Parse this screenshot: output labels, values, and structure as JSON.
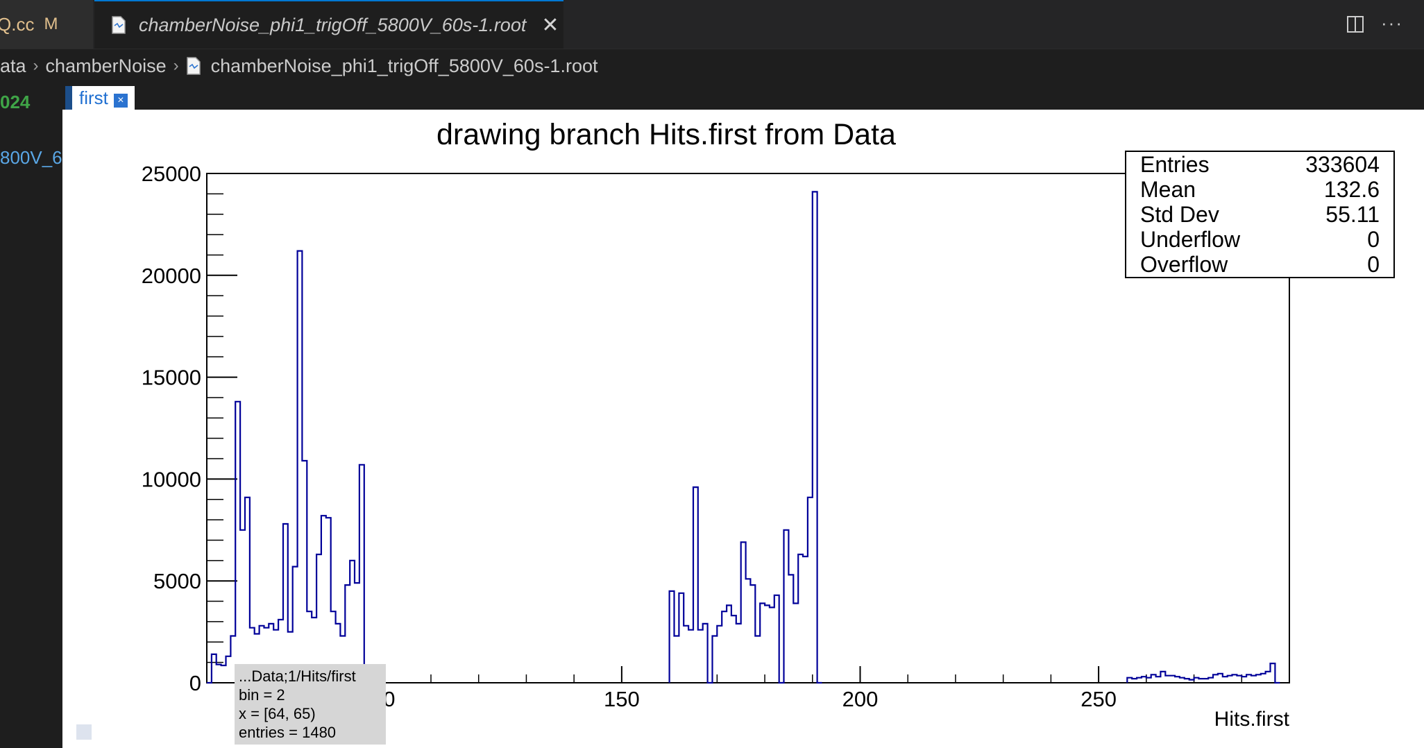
{
  "tabs": [
    {
      "label": "Q.cc",
      "status": "M"
    },
    {
      "label": "chamberNoise_phi1_trigOff_5800V_60s-1.root",
      "active": true
    }
  ],
  "icons": {
    "split": "split-editor-icon",
    "more": "more-actions-icon",
    "close": "close-icon",
    "file": "file-icon"
  },
  "breadcrumb": [
    "ata",
    "chamberNoise",
    "chamberNoise_phi1_trigOff_5800V_60s-1.root"
  ],
  "side": {
    "line1": "024",
    "line2": "800V_6"
  },
  "canvas_tab": {
    "label": "first",
    "close": "×"
  },
  "stats": [
    {
      "label": "Entries",
      "value": "333604"
    },
    {
      "label": "Mean",
      "value": "132.6"
    },
    {
      "label": "Std Dev",
      "value": "55.11"
    },
    {
      "label": "Underflow",
      "value": "0"
    },
    {
      "label": "Overflow",
      "value": "0"
    }
  ],
  "tooltip": [
    "...Data;1/Hits/first",
    "bin = 2",
    "x = [64, 65)",
    "entries = 1480"
  ],
  "chart_data": {
    "type": "histogram",
    "title": "drawing branch Hits.first from Data",
    "xlabel": "Hits.first",
    "ylabel": "",
    "xlim": [
      63,
      290
    ],
    "ylim": [
      0,
      25000
    ],
    "x_ticks": [
      "00",
      "150",
      "200",
      "250"
    ],
    "x_tick_values": [
      100,
      150,
      200,
      250
    ],
    "y_ticks": [
      "0",
      "5000",
      "10000",
      "15000",
      "20000",
      "25000"
    ],
    "y_tick_values": [
      0,
      5000,
      10000,
      15000,
      20000,
      25000
    ],
    "bin_width": 1,
    "line_color": "#000099",
    "bins_start": [
      {
        "x0": 63,
        "values": [
          0,
          1400,
          900,
          850,
          1300,
          2300,
          13800,
          7500,
          9100,
          2700,
          2400,
          2800,
          2700,
          2900,
          2600,
          3100,
          7800,
          2500,
          5700,
          21200,
          10900,
          3500,
          3200,
          6300,
          8200,
          8100,
          3500,
          2900,
          2300,
          4800,
          6000,
          4900,
          10700,
          0
        ]
      },
      {
        "x0": 160,
        "values": [
          4500,
          2300,
          4400,
          2800,
          2600,
          9600,
          2600,
          2900,
          0,
          2300,
          2800,
          3500,
          3800,
          3300,
          2900,
          6900,
          5100,
          4800,
          2300,
          3900,
          3800,
          3700,
          4300,
          0,
          7500,
          5300,
          3900,
          6300,
          6200,
          9100,
          24100,
          0
        ]
      },
      {
        "x0": 256,
        "values": [
          250,
          200,
          250,
          300,
          250,
          400,
          300,
          550,
          350,
          350,
          300,
          250,
          200,
          150,
          250,
          200,
          200,
          250,
          400,
          450,
          300,
          350,
          400,
          350,
          300,
          400,
          350,
          400,
          450,
          550,
          950,
          0
        ]
      }
    ]
  }
}
